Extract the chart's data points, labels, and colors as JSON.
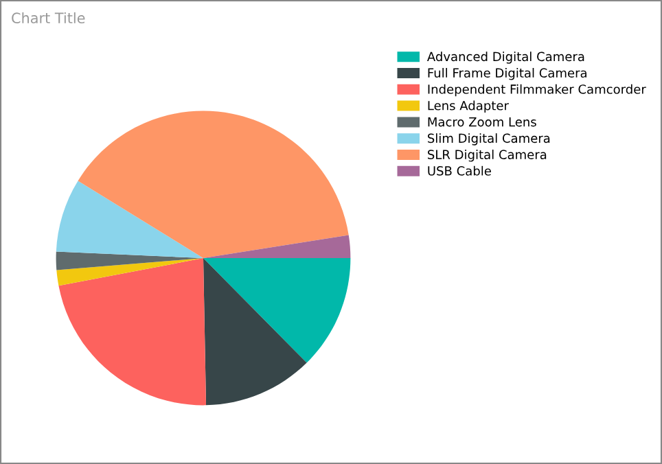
{
  "chart_data": {
    "type": "pie",
    "title": "Chart Title",
    "categories": [
      "Advanced Digital Camera",
      "Full Frame Digital Camera",
      "Independent Filmmaker Camcorder",
      "Lens Adapter",
      "Macro Zoom Lens",
      "Slim Digital Camera",
      "SLR Digital Camera",
      "USB Cable"
    ],
    "values": [
      12.6,
      12.1,
      22.3,
      1.7,
      2.0,
      8.1,
      38.7,
      2.5
    ],
    "colors": [
      "#01b8aa",
      "#374649",
      "#fd625e",
      "#f2c80f",
      "#5f6b6d",
      "#8ad4eb",
      "#fe9666",
      "#a66999"
    ],
    "legend": "top right"
  }
}
